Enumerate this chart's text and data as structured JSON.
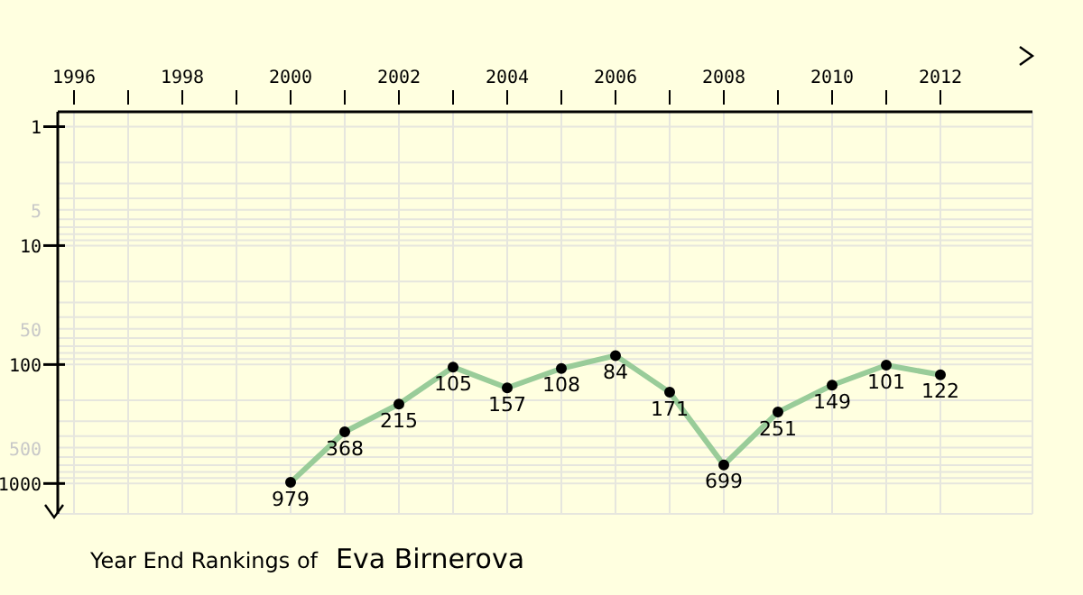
{
  "chart_data": {
    "type": "line",
    "title": "Year End Rankings of",
    "subtitle": "Eva Birnerova",
    "x": [
      2000,
      2001,
      2002,
      2003,
      2004,
      2005,
      2006,
      2007,
      2008,
      2009,
      2010,
      2011,
      2012
    ],
    "series": [
      {
        "color": "#99cc99",
        "values": [
          979,
          368,
          215,
          105,
          157,
          108,
          84,
          171,
          699,
          251,
          149,
          101,
          122
        ]
      }
    ],
    "xlim": [
      1995.7,
      2013.7
    ],
    "xticks": [
      1996,
      {
        "value": 1997,
        "label": null
      },
      1998,
      {
        "value": 1999,
        "label": null
      },
      2000,
      {
        "value": 2001,
        "label": null
      },
      2002,
      {
        "value": 2003,
        "label": null
      },
      2004,
      {
        "value": 2005,
        "label": null
      },
      2006,
      {
        "value": 2007,
        "label": null
      },
      2008,
      {
        "value": 2009,
        "label": null
      },
      2010,
      {
        "value": 2011,
        "label": null
      },
      2012
    ],
    "ylim": [
      1800,
      0.75
    ],
    "yticks": [
      1,
      {
        "value": 2,
        "label": null
      },
      {
        "value": 3,
        "label": null
      },
      {
        "value": 4,
        "label": null
      },
      5,
      {
        "value": 6,
        "label": null
      },
      {
        "value": 7,
        "label": null
      },
      {
        "value": 8,
        "label": null
      },
      {
        "value": 9,
        "label": null
      },
      10,
      {
        "value": 20,
        "label": null
      },
      {
        "value": 30,
        "label": null
      },
      {
        "value": 40,
        "label": null
      },
      50,
      {
        "value": 60,
        "label": null
      },
      {
        "value": 70,
        "label": null
      },
      {
        "value": 80,
        "label": null
      },
      {
        "value": 90,
        "label": null
      },
      100,
      {
        "value": 200,
        "label": null
      },
      {
        "value": 300,
        "label": null
      },
      {
        "value": 400,
        "label": null
      },
      500,
      {
        "value": 600,
        "label": null
      },
      {
        "value": 700,
        "label": null
      },
      {
        "value": 800,
        "label": null
      },
      {
        "value": 900,
        "label": null
      },
      1000
    ],
    "log": "y",
    "grid": true,
    "marker": "circle",
    "line_style": "solid",
    "data_labels": true
  }
}
